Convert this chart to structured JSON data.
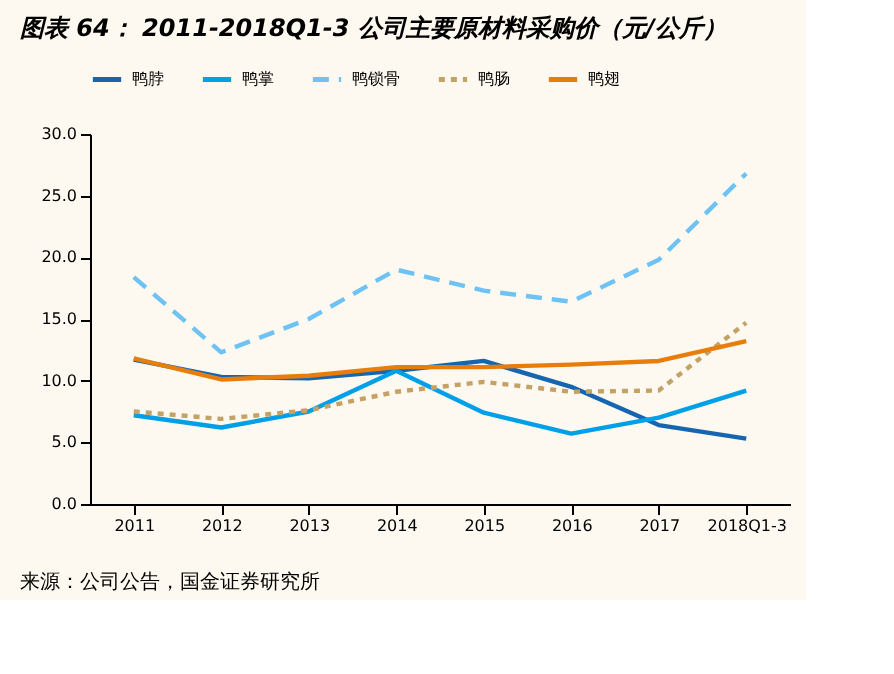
{
  "chart_data": {
    "type": "line",
    "title": "图表 64： 2011-2018Q1-3 公司主要原材料采购价（元/公斤）",
    "categories": [
      "2011",
      "2012",
      "2013",
      "2014",
      "2015",
      "2016",
      "2017",
      "2018Q1-3"
    ],
    "series": [
      {
        "name": "鸭脖",
        "color": "#1565b0",
        "line_style": "solid",
        "values": [
          11.7,
          10.3,
          10.2,
          10.8,
          11.6,
          9.5,
          6.4,
          5.3
        ]
      },
      {
        "name": "鸭掌",
        "color": "#00a0e9",
        "line_style": "solid",
        "values": [
          7.2,
          6.2,
          7.5,
          10.8,
          7.4,
          5.7,
          7.0,
          9.2
        ]
      },
      {
        "name": "鸭锁骨",
        "color": "#6ec3f4",
        "line_style": "dashed",
        "values": [
          18.4,
          12.3,
          15.0,
          19.0,
          17.3,
          16.4,
          19.8,
          26.8
        ]
      },
      {
        "name": "鸭肠",
        "color": "#c4a265",
        "line_style": "dotted",
        "values": [
          7.5,
          6.9,
          7.6,
          9.1,
          9.9,
          9.1,
          9.2,
          14.7
        ]
      },
      {
        "name": "鸭翅",
        "color": "#e87d0c",
        "line_style": "solid",
        "values": [
          11.8,
          10.1,
          10.4,
          11.1,
          11.1,
          11.3,
          11.6,
          13.2
        ]
      }
    ],
    "ylim": [
      0,
      30
    ],
    "yticks": [
      {
        "value": 0,
        "label": "0.0"
      },
      {
        "value": 5,
        "label": "5.0"
      },
      {
        "value": 10,
        "label": "10.0"
      },
      {
        "value": 15,
        "label": "15.0"
      },
      {
        "value": 20,
        "label": "20.0"
      },
      {
        "value": 25,
        "label": "25.0"
      },
      {
        "value": 30,
        "label": "30.0"
      }
    ],
    "grid": false,
    "legend": "top",
    "marker": "none",
    "annotations": [
      "来源：公司公告，国金证券研究所"
    ]
  }
}
